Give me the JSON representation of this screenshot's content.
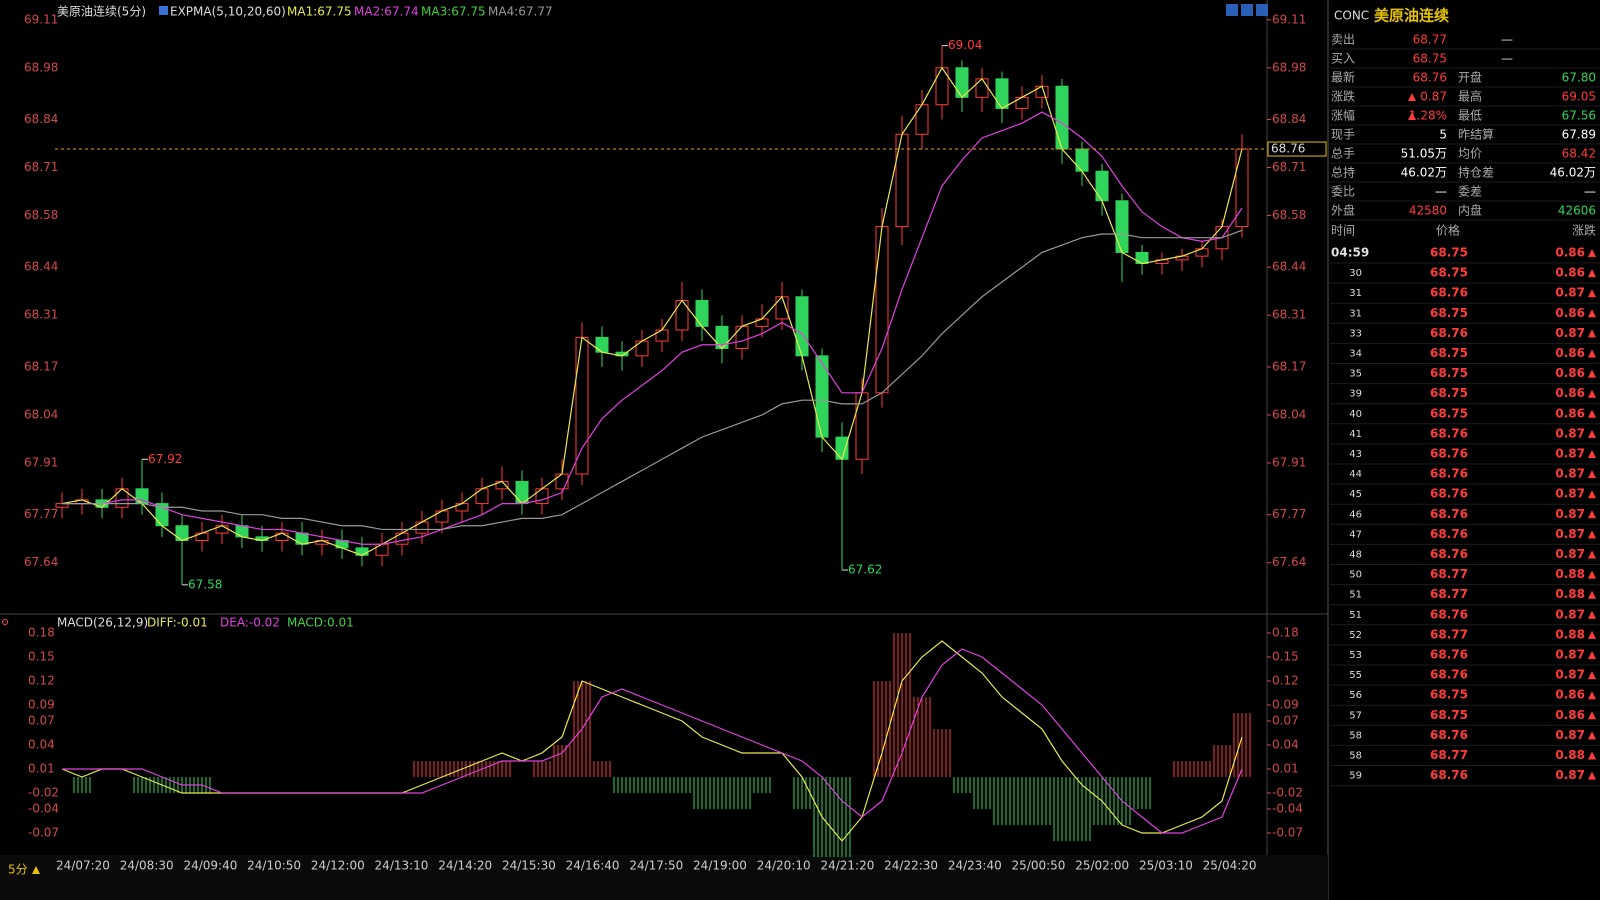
{
  "title_bar": {
    "symbol_name": "美原油连续(5分)",
    "indicator": "EXPMA(5,10,20,60)",
    "ma_labels": [
      "MA1:67.75",
      "MA2:67.74",
      "MA3:67.75",
      "MA4:67.77"
    ]
  },
  "price_chart": {
    "ylim": [
      67.52,
      69.15
    ],
    "yticks": [
      69.11,
      68.98,
      68.84,
      68.71,
      68.58,
      68.44,
      68.31,
      68.17,
      68.04,
      67.91,
      67.77,
      67.64
    ],
    "x_labels": [
      "24/07:20",
      "24/08:30",
      "24/09:40",
      "24/10:50",
      "24/12:00",
      "24/13:10",
      "24/14:20",
      "24/15:30",
      "24/16:40",
      "24/17:50",
      "24/19:00",
      "24/20:10",
      "24/21:20",
      "24/22:30",
      "24/23:40",
      "25/00:50",
      "25/02:00",
      "25/03:10",
      "25/04:20"
    ],
    "candles": {
      "open": [
        67.79,
        67.8,
        67.81,
        67.79,
        67.84,
        67.8,
        67.74,
        67.7,
        67.72,
        67.74,
        67.71,
        67.7,
        67.72,
        67.69,
        67.7,
        67.68,
        67.66,
        67.69,
        67.72,
        67.75,
        67.78,
        67.8,
        67.84,
        67.86,
        67.8,
        67.84,
        67.88,
        68.25,
        68.21,
        68.2,
        68.24,
        68.27,
        68.35,
        68.28,
        68.22,
        68.28,
        68.3,
        68.36,
        68.2,
        67.98,
        67.92,
        68.1,
        68.55,
        68.8,
        68.88,
        68.98,
        68.9,
        68.95,
        68.87,
        68.9,
        68.93,
        68.76,
        68.7,
        68.62,
        68.48,
        68.45,
        68.46,
        68.47,
        68.49,
        68.55
      ],
      "high": [
        67.83,
        67.84,
        67.84,
        67.87,
        67.92,
        67.83,
        67.77,
        67.75,
        67.77,
        67.77,
        67.74,
        67.75,
        67.75,
        67.73,
        67.73,
        67.71,
        67.72,
        67.75,
        67.78,
        67.81,
        67.83,
        67.87,
        67.9,
        67.89,
        67.87,
        67.92,
        68.29,
        68.28,
        68.24,
        68.27,
        68.3,
        68.4,
        68.38,
        68.31,
        68.31,
        68.34,
        68.4,
        68.38,
        68.22,
        68.02,
        68.14,
        68.6,
        68.85,
        68.92,
        69.04,
        69.0,
        68.98,
        68.97,
        68.93,
        68.96,
        68.95,
        68.78,
        68.72,
        68.64,
        68.5,
        68.48,
        68.49,
        68.51,
        68.57,
        68.8
      ],
      "low": [
        67.76,
        67.77,
        67.76,
        67.76,
        67.77,
        67.71,
        67.58,
        67.67,
        67.69,
        67.68,
        67.67,
        67.67,
        67.66,
        67.66,
        67.65,
        67.63,
        67.63,
        67.66,
        67.69,
        67.72,
        67.75,
        67.77,
        67.81,
        67.77,
        67.77,
        67.81,
        67.85,
        68.17,
        68.16,
        68.17,
        68.21,
        68.24,
        68.24,
        68.18,
        68.19,
        68.25,
        68.27,
        68.16,
        67.94,
        67.62,
        67.88,
        68.06,
        68.5,
        68.76,
        68.84,
        68.86,
        68.86,
        68.83,
        68.84,
        68.87,
        68.72,
        68.66,
        68.58,
        68.4,
        68.42,
        68.42,
        68.43,
        68.44,
        68.46,
        68.52
      ],
      "close": [
        67.8,
        67.81,
        67.79,
        67.84,
        67.8,
        67.74,
        67.7,
        67.72,
        67.74,
        67.71,
        67.7,
        67.72,
        67.69,
        67.7,
        67.68,
        67.66,
        67.69,
        67.72,
        67.75,
        67.78,
        67.8,
        67.84,
        67.86,
        67.8,
        67.84,
        67.88,
        68.25,
        68.21,
        68.2,
        68.24,
        68.27,
        68.35,
        68.28,
        68.22,
        68.28,
        68.3,
        68.36,
        68.2,
        67.98,
        67.92,
        68.1,
        68.55,
        68.8,
        68.88,
        68.98,
        68.9,
        68.95,
        68.87,
        68.9,
        68.93,
        68.76,
        68.7,
        68.62,
        68.48,
        68.45,
        68.46,
        68.47,
        68.49,
        68.55,
        68.76
      ]
    },
    "ma2": [
      67.8,
      67.8,
      67.8,
      67.81,
      67.81,
      67.79,
      67.77,
      67.76,
      67.75,
      67.74,
      67.73,
      67.73,
      67.72,
      67.71,
      67.7,
      67.69,
      67.69,
      67.7,
      67.71,
      67.73,
      67.75,
      67.77,
      67.8,
      67.8,
      67.81,
      67.83,
      67.95,
      68.03,
      68.08,
      68.12,
      68.16,
      68.21,
      68.23,
      68.23,
      68.24,
      68.26,
      68.29,
      68.26,
      68.18,
      68.1,
      68.1,
      68.22,
      68.38,
      68.52,
      68.66,
      68.73,
      68.79,
      68.81,
      68.83,
      68.86,
      68.83,
      68.79,
      68.74,
      68.66,
      68.59,
      68.55,
      68.52,
      68.51,
      68.52,
      68.6
    ],
    "ma4": [
      67.8,
      67.8,
      67.8,
      67.8,
      67.8,
      67.79,
      67.79,
      67.78,
      67.78,
      67.77,
      67.77,
      67.76,
      67.76,
      67.75,
      67.74,
      67.74,
      67.73,
      67.73,
      67.73,
      67.73,
      67.74,
      67.74,
      67.75,
      67.76,
      67.76,
      67.77,
      67.8,
      67.83,
      67.86,
      67.89,
      67.92,
      67.95,
      67.98,
      68.0,
      68.02,
      68.04,
      68.07,
      68.08,
      68.08,
      68.07,
      68.07,
      68.1,
      68.15,
      68.2,
      68.26,
      68.31,
      68.36,
      68.4,
      68.44,
      68.48,
      68.5,
      68.52,
      68.53,
      68.53,
      68.52,
      68.52,
      68.52,
      68.52,
      68.52,
      68.54
    ]
  },
  "macd_chart": {
    "legend": [
      "MACD(26,12,9)",
      "DIFF:-0.01",
      "DEA:-0.02",
      "MACD:0.01"
    ],
    "ylim": [
      -0.085,
      0.19
    ],
    "yticks": [
      0.18,
      0.15,
      0.12,
      0.09,
      0.07,
      0.04,
      0.01,
      -0.02,
      -0.04,
      -0.07
    ],
    "diff": [
      0.01,
      0.0,
      0.01,
      0.01,
      0.0,
      -0.01,
      -0.02,
      -0.02,
      -0.02,
      -0.02,
      -0.02,
      -0.02,
      -0.02,
      -0.02,
      -0.02,
      -0.02,
      -0.02,
      -0.02,
      -0.01,
      0.0,
      0.01,
      0.02,
      0.03,
      0.02,
      0.03,
      0.05,
      0.12,
      0.11,
      0.1,
      0.09,
      0.08,
      0.07,
      0.05,
      0.04,
      0.03,
      0.03,
      0.03,
      0.0,
      -0.05,
      -0.08,
      -0.05,
      0.03,
      0.12,
      0.15,
      0.17,
      0.15,
      0.13,
      0.1,
      0.08,
      0.06,
      0.02,
      -0.01,
      -0.03,
      -0.06,
      -0.07,
      -0.07,
      -0.06,
      -0.05,
      -0.03,
      0.05
    ],
    "dea": [
      0.01,
      0.01,
      0.01,
      0.01,
      0.01,
      0.0,
      -0.01,
      -0.01,
      -0.02,
      -0.02,
      -0.02,
      -0.02,
      -0.02,
      -0.02,
      -0.02,
      -0.02,
      -0.02,
      -0.02,
      -0.02,
      -0.01,
      0.0,
      0.01,
      0.02,
      0.02,
      0.02,
      0.03,
      0.06,
      0.1,
      0.11,
      0.1,
      0.09,
      0.08,
      0.07,
      0.06,
      0.05,
      0.04,
      0.03,
      0.02,
      0.0,
      -0.03,
      -0.05,
      -0.03,
      0.03,
      0.1,
      0.14,
      0.16,
      0.15,
      0.13,
      0.11,
      0.09,
      0.06,
      0.03,
      0.0,
      -0.03,
      -0.05,
      -0.07,
      -0.07,
      -0.06,
      -0.05,
      0.01
    ],
    "macd": [
      0.0,
      -0.02,
      0.0,
      0.0,
      -0.02,
      -0.02,
      -0.02,
      -0.02,
      0.0,
      0.0,
      0.0,
      0.0,
      0.0,
      0.0,
      0.0,
      0.0,
      0.0,
      0.0,
      0.02,
      0.02,
      0.02,
      0.02,
      0.02,
      0.0,
      0.02,
      0.04,
      0.12,
      0.02,
      -0.02,
      -0.02,
      -0.02,
      -0.02,
      -0.04,
      -0.04,
      -0.04,
      -0.02,
      0.0,
      -0.04,
      -0.1,
      -0.1,
      0.0,
      0.12,
      0.18,
      0.1,
      0.06,
      -0.02,
      -0.04,
      -0.06,
      -0.06,
      -0.06,
      -0.08,
      -0.08,
      -0.06,
      -0.06,
      -0.04,
      0.0,
      0.02,
      0.02,
      0.04,
      0.08
    ]
  },
  "period_button": "5分",
  "quote_panel": {
    "code": "CONC",
    "name": "美原油连续",
    "rows": [
      [
        "卖出",
        "68.77",
        "—"
      ],
      [
        "买入",
        "68.75",
        "—"
      ],
      [
        "最新",
        "68.76",
        "开盘",
        "67.80"
      ],
      [
        "涨跌",
        "0.87",
        "最高",
        "69.05"
      ],
      [
        "涨幅",
        "1.28%",
        "最低",
        "67.56"
      ],
      [
        "现手",
        "5",
        "昨结算",
        "67.89"
      ],
      [
        "总手",
        "51.05万",
        "均价",
        "68.42"
      ],
      [
        "总持",
        "46.02万",
        "持仓差",
        "46.02万"
      ],
      [
        "委比",
        "—",
        "委差",
        "—"
      ],
      [
        "外盘",
        "42580",
        "内盘",
        "42606"
      ]
    ]
  },
  "ticks": {
    "header": [
      "时间",
      "价格",
      "涨跌"
    ],
    "rows": [
      [
        "04:59",
        "68.75",
        "0.86"
      ],
      [
        "30",
        "68.75",
        "0.86"
      ],
      [
        "31",
        "68.76",
        "0.87"
      ],
      [
        "31",
        "68.75",
        "0.86"
      ],
      [
        "33",
        "68.76",
        "0.87"
      ],
      [
        "34",
        "68.75",
        "0.86"
      ],
      [
        "35",
        "68.75",
        "0.86"
      ],
      [
        "39",
        "68.75",
        "0.86"
      ],
      [
        "40",
        "68.75",
        "0.86"
      ],
      [
        "41",
        "68.76",
        "0.87"
      ],
      [
        "43",
        "68.76",
        "0.87"
      ],
      [
        "44",
        "68.76",
        "0.87"
      ],
      [
        "45",
        "68.76",
        "0.87"
      ],
      [
        "46",
        "68.76",
        "0.87"
      ],
      [
        "47",
        "68.76",
        "0.87"
      ],
      [
        "48",
        "68.76",
        "0.87"
      ],
      [
        "50",
        "68.77",
        "0.88"
      ],
      [
        "51",
        "68.77",
        "0.88"
      ],
      [
        "51",
        "68.76",
        "0.87"
      ],
      [
        "52",
        "68.77",
        "0.88"
      ],
      [
        "53",
        "68.76",
        "0.87"
      ],
      [
        "55",
        "68.76",
        "0.87"
      ],
      [
        "56",
        "68.75",
        "0.86"
      ],
      [
        "57",
        "68.75",
        "0.86"
      ],
      [
        "58",
        "68.76",
        "0.87"
      ],
      [
        "58",
        "68.77",
        "0.88"
      ],
      [
        "59",
        "68.76",
        "0.87"
      ]
    ]
  }
}
